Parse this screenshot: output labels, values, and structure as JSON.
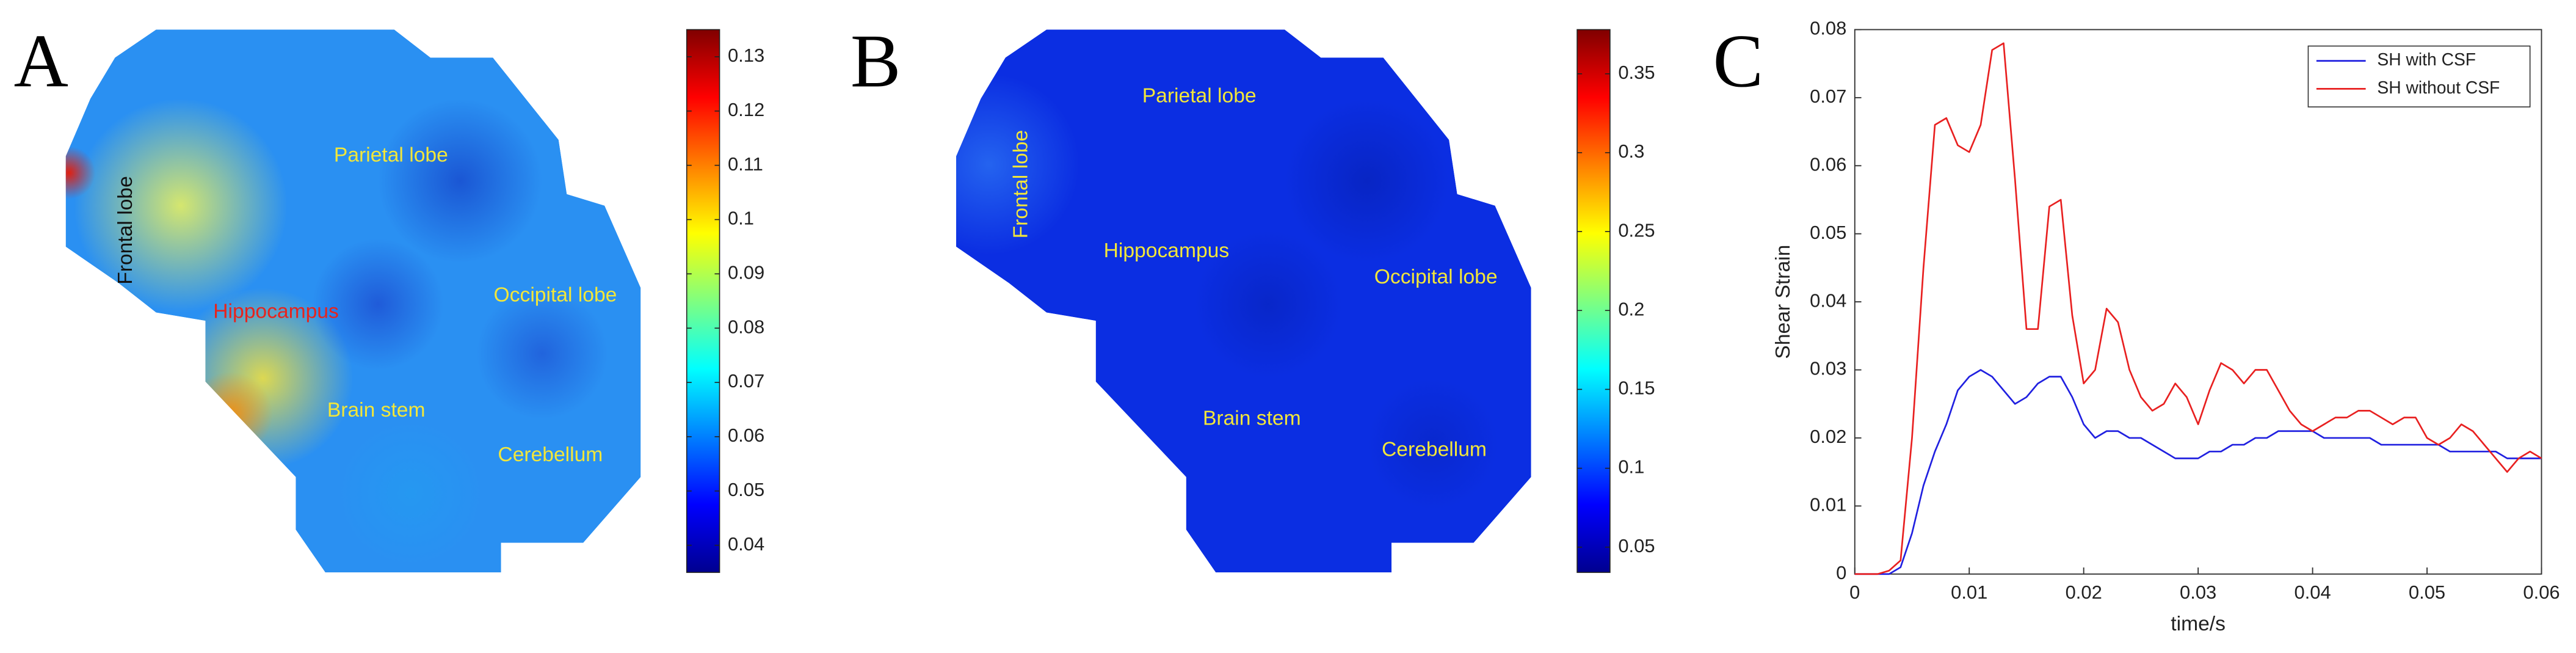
{
  "chart_data": [
    {
      "type": "heatmap",
      "panel_label": "A",
      "colormap": "jet",
      "color": "#2a90f2",
      "clim": [
        0.035,
        0.135
      ],
      "cticks": [
        0.04,
        0.05,
        0.06,
        0.07,
        0.08,
        0.09,
        0.1,
        0.11,
        0.12,
        0.13
      ],
      "labels": [
        {
          "text": "Frontal lobe",
          "color": "#111111"
        },
        {
          "text": "Parietal lobe",
          "color": "#f2e63a"
        },
        {
          "text": "Hippocampus",
          "color": "#e8231c"
        },
        {
          "text": "Occipital lobe",
          "color": "#f2e63a"
        },
        {
          "text": "Brain stem",
          "color": "#f2e63a"
        },
        {
          "text": "Cerebellum",
          "color": "#f2e63a"
        }
      ]
    },
    {
      "type": "heatmap",
      "panel_label": "B",
      "colormap": "jet",
      "color": "#0b2ee2",
      "clim": [
        0.034,
        0.378
      ],
      "cticks": [
        0.05,
        0.1,
        0.15,
        0.2,
        0.25,
        0.3,
        0.35
      ],
      "labels": [
        {
          "text": "Frontal lobe",
          "color": "#f2e63a"
        },
        {
          "text": "Parietal lobe",
          "color": "#f2e63a"
        },
        {
          "text": "Hippocampus",
          "color": "#f2e63a"
        },
        {
          "text": "Occipital lobe",
          "color": "#f2e63a"
        },
        {
          "text": "Brain stem",
          "color": "#f2e63a"
        },
        {
          "text": "Cerebellum",
          "color": "#f2e63a"
        }
      ]
    },
    {
      "type": "line",
      "panel_label": "C",
      "xlabel": "time/s",
      "ylabel": "Shear Strain",
      "legend": "upper right",
      "box": true,
      "xlim": [
        0,
        0.06
      ],
      "ylim": [
        0,
        0.08
      ],
      "xticks": [
        0,
        0.01,
        0.02,
        0.03,
        0.04,
        0.05,
        0.06
      ],
      "yticks": [
        0,
        0.01,
        0.02,
        0.03,
        0.04,
        0.05,
        0.06,
        0.07,
        0.08
      ],
      "x": [
        0,
        0.001,
        0.002,
        0.003,
        0.004,
        0.005,
        0.006,
        0.007,
        0.008,
        0.009,
        0.01,
        0.011,
        0.012,
        0.013,
        0.014,
        0.015,
        0.016,
        0.017,
        0.018,
        0.019,
        0.02,
        0.021,
        0.022,
        0.023,
        0.024,
        0.025,
        0.026,
        0.027,
        0.028,
        0.029,
        0.03,
        0.031,
        0.032,
        0.033,
        0.034,
        0.035,
        0.036,
        0.037,
        0.038,
        0.039,
        0.04,
        0.041,
        0.042,
        0.043,
        0.044,
        0.045,
        0.046,
        0.047,
        0.048,
        0.049,
        0.05,
        0.051,
        0.052,
        0.053,
        0.054,
        0.055,
        0.056,
        0.057,
        0.058,
        0.059,
        0.06
      ],
      "series": [
        {
          "name": "SH with CSF",
          "color": "#2020e0",
          "values": [
            0,
            0,
            0,
            0,
            0.001,
            0.006,
            0.013,
            0.018,
            0.022,
            0.027,
            0.029,
            0.03,
            0.029,
            0.027,
            0.025,
            0.026,
            0.028,
            0.029,
            0.029,
            0.026,
            0.022,
            0.02,
            0.021,
            0.021,
            0.02,
            0.02,
            0.019,
            0.018,
            0.017,
            0.017,
            0.017,
            0.018,
            0.018,
            0.019,
            0.019,
            0.02,
            0.02,
            0.021,
            0.021,
            0.021,
            0.021,
            0.02,
            0.02,
            0.02,
            0.02,
            0.02,
            0.019,
            0.019,
            0.019,
            0.019,
            0.019,
            0.019,
            0.018,
            0.018,
            0.018,
            0.018,
            0.018,
            0.017,
            0.017,
            0.017,
            0.017
          ]
        },
        {
          "name": "SH without CSF",
          "color": "#e82020",
          "values": [
            0,
            0,
            0,
            0.0005,
            0.002,
            0.02,
            0.045,
            0.066,
            0.067,
            0.063,
            0.062,
            0.066,
            0.077,
            0.078,
            0.058,
            0.036,
            0.036,
            0.054,
            0.055,
            0.038,
            0.028,
            0.03,
            0.039,
            0.037,
            0.03,
            0.026,
            0.024,
            0.025,
            0.028,
            0.026,
            0.022,
            0.027,
            0.031,
            0.03,
            0.028,
            0.03,
            0.03,
            0.027,
            0.024,
            0.022,
            0.021,
            0.022,
            0.023,
            0.023,
            0.024,
            0.024,
            0.023,
            0.022,
            0.023,
            0.023,
            0.02,
            0.019,
            0.02,
            0.022,
            0.021,
            0.019,
            0.017,
            0.015,
            0.017,
            0.018,
            0.017
          ]
        }
      ]
    }
  ]
}
